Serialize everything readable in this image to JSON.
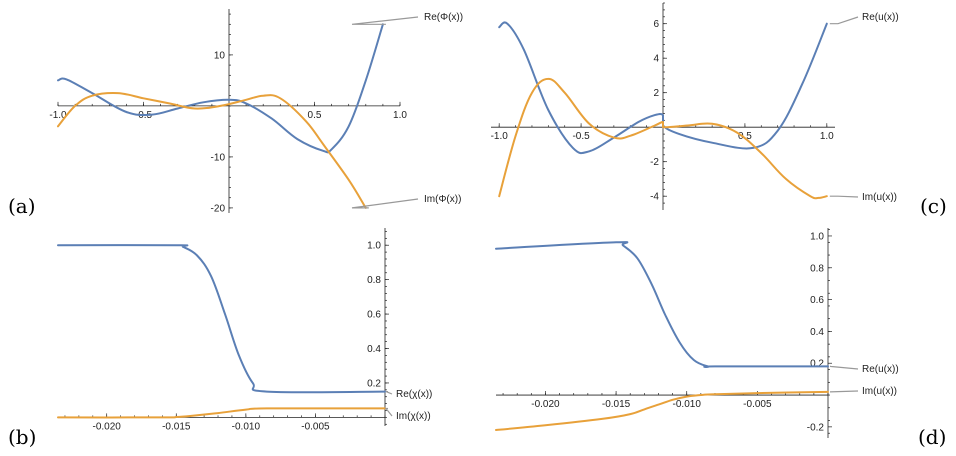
{
  "colors": {
    "re": "#5b7fb5",
    "im": "#e8a13a"
  },
  "chart_data": [
    {
      "panel": "(a)",
      "type": "line",
      "xlim": [
        -1,
        1
      ],
      "ylim": [
        -21,
        19
      ],
      "xticks": [
        -1.0,
        -0.5,
        0.5,
        1.0
      ],
      "xtick_labels": [
        "-1.0",
        "-0.5",
        "0.5",
        "1.0"
      ],
      "yticks": [
        10,
        -10,
        -20
      ],
      "ytick_labels": [
        "10",
        "-10",
        "-20"
      ],
      "series": [
        {
          "name": "Re(Φ(x))",
          "key": "re",
          "x": [
            -1.0,
            -0.95,
            -0.8,
            -0.6,
            -0.45,
            -0.3,
            -0.15,
            0.0,
            0.1,
            0.25,
            0.4,
            0.55,
            0.6,
            0.7,
            0.8,
            0.9
          ],
          "y": [
            5.0,
            5.2,
            2.5,
            -1.2,
            -1.7,
            -0.5,
            0.7,
            1.2,
            0.5,
            -2.5,
            -6.5,
            -8.8,
            -8.5,
            -4.0,
            5.0,
            16.0
          ]
        },
        {
          "name": "Im(Φ(x))",
          "key": "im",
          "x": [
            -1.0,
            -0.9,
            -0.8,
            -0.65,
            -0.5,
            -0.35,
            -0.2,
            -0.05,
            0.1,
            0.2,
            0.3,
            0.45,
            0.55,
            0.7,
            0.8
          ],
          "y": [
            -4.0,
            0.0,
            2.0,
            2.5,
            1.5,
            0.5,
            -0.5,
            0.0,
            1.2,
            2.0,
            1.5,
            -3.0,
            -7.5,
            -14.5,
            -20.0
          ]
        }
      ]
    },
    {
      "panel": "(b)",
      "type": "line",
      "xlim": [
        -0.0235,
        0
      ],
      "ylim": [
        -0.05,
        1.1
      ],
      "xticks": [
        -0.02,
        -0.015,
        -0.01,
        -0.005
      ],
      "xtick_labels": [
        "-0.020",
        "-0.015",
        "-0.010",
        "-0.005"
      ],
      "yticks": [
        0.2,
        0.4,
        0.6,
        0.8,
        1.0
      ],
      "ytick_labels": [
        "0.2",
        "0.4",
        "0.6",
        "0.8",
        "1.0"
      ],
      "series": [
        {
          "name": "Re(χ(x))",
          "key": "re",
          "x": [
            -0.0235,
            -0.015,
            -0.0145,
            -0.0135,
            -0.0125,
            -0.0115,
            -0.0105,
            -0.0095,
            -0.0085,
            0.0
          ],
          "y": [
            1.0,
            1.0,
            0.99,
            0.94,
            0.82,
            0.6,
            0.36,
            0.2,
            0.15,
            0.15
          ]
        },
        {
          "name": "Im(χ(x))",
          "key": "im",
          "x": [
            -0.0235,
            -0.016,
            -0.015,
            -0.014,
            -0.012,
            -0.01,
            -0.0085,
            0.0
          ],
          "y": [
            0.0,
            0.0,
            0.002,
            0.008,
            0.025,
            0.045,
            0.052,
            0.052
          ]
        }
      ]
    },
    {
      "panel": "(c)",
      "type": "line",
      "xlim": [
        -1.05,
        1.05
      ],
      "ylim": [
        -4.8,
        7.2
      ],
      "xticks": [
        -1.0,
        -0.5,
        0.5,
        1.0
      ],
      "xtick_labels": [
        "-1.0",
        "-0.5",
        "0.5",
        "1.0"
      ],
      "yticks": [
        6,
        4,
        2,
        -2,
        -4
      ],
      "ytick_labels": [
        "6",
        "4",
        "2",
        "-2",
        "-4"
      ],
      "series": [
        {
          "name": "Re(u(x))",
          "key": "re",
          "x": [
            -1.0,
            -0.95,
            -0.85,
            -0.7,
            -0.55,
            -0.45,
            -0.3,
            -0.15,
            -0.05,
            0.0,
            0.0,
            0.1,
            0.3,
            0.55,
            0.7,
            0.85,
            1.0
          ],
          "y": [
            5.8,
            6.0,
            4.5,
            1.0,
            -1.2,
            -1.4,
            -0.6,
            0.3,
            0.7,
            0.7,
            0.1,
            -0.4,
            -0.9,
            -1.2,
            -0.2,
            2.5,
            6.0
          ]
        },
        {
          "name": "Im(u(x))",
          "key": "im",
          "x": [
            -1.0,
            -0.9,
            -0.8,
            -0.7,
            -0.6,
            -0.45,
            -0.3,
            -0.2,
            -0.05,
            0.0,
            0.0,
            0.15,
            0.3,
            0.45,
            0.6,
            0.75,
            0.9,
            0.95,
            1.0
          ],
          "y": [
            -4.0,
            -0.5,
            2.0,
            2.8,
            2.0,
            0.2,
            -0.6,
            -0.5,
            0.1,
            0.3,
            0.0,
            0.1,
            0.2,
            -0.3,
            -1.5,
            -3.0,
            -4.0,
            -4.1,
            -4.0
          ]
        }
      ]
    },
    {
      "panel": "(d)",
      "type": "line",
      "xlim": [
        -0.0235,
        0
      ],
      "ylim": [
        -0.27,
        1.05
      ],
      "xticks": [
        -0.02,
        -0.015,
        -0.01,
        -0.005
      ],
      "xtick_labels": [
        "-0.020",
        "-0.015",
        "-0.010",
        "-0.005"
      ],
      "yticks": [
        1.0,
        0.8,
        0.6,
        0.4,
        0.2,
        -0.2
      ],
      "ytick_labels": [
        "1.0",
        "0.8",
        "0.6",
        "0.4",
        "0.2",
        "-0.2"
      ],
      "series": [
        {
          "name": "Re(u(x))",
          "key": "re",
          "x": [
            -0.0235,
            -0.015,
            -0.0145,
            -0.0135,
            -0.0125,
            -0.0115,
            -0.0105,
            -0.0095,
            -0.0085,
            -0.008,
            0.0
          ],
          "y": [
            0.92,
            0.96,
            0.94,
            0.86,
            0.7,
            0.5,
            0.33,
            0.22,
            0.18,
            0.18,
            0.18
          ]
        },
        {
          "name": "Im(u(x))",
          "key": "im",
          "x": [
            -0.0235,
            -0.02,
            -0.016,
            -0.014,
            -0.013,
            -0.012,
            -0.011,
            -0.01,
            -0.009,
            -0.008,
            -0.005,
            0.0
          ],
          "y": [
            -0.22,
            -0.19,
            -0.15,
            -0.12,
            -0.09,
            -0.06,
            -0.03,
            -0.01,
            0.0,
            0.005,
            0.012,
            0.02
          ]
        }
      ]
    }
  ]
}
